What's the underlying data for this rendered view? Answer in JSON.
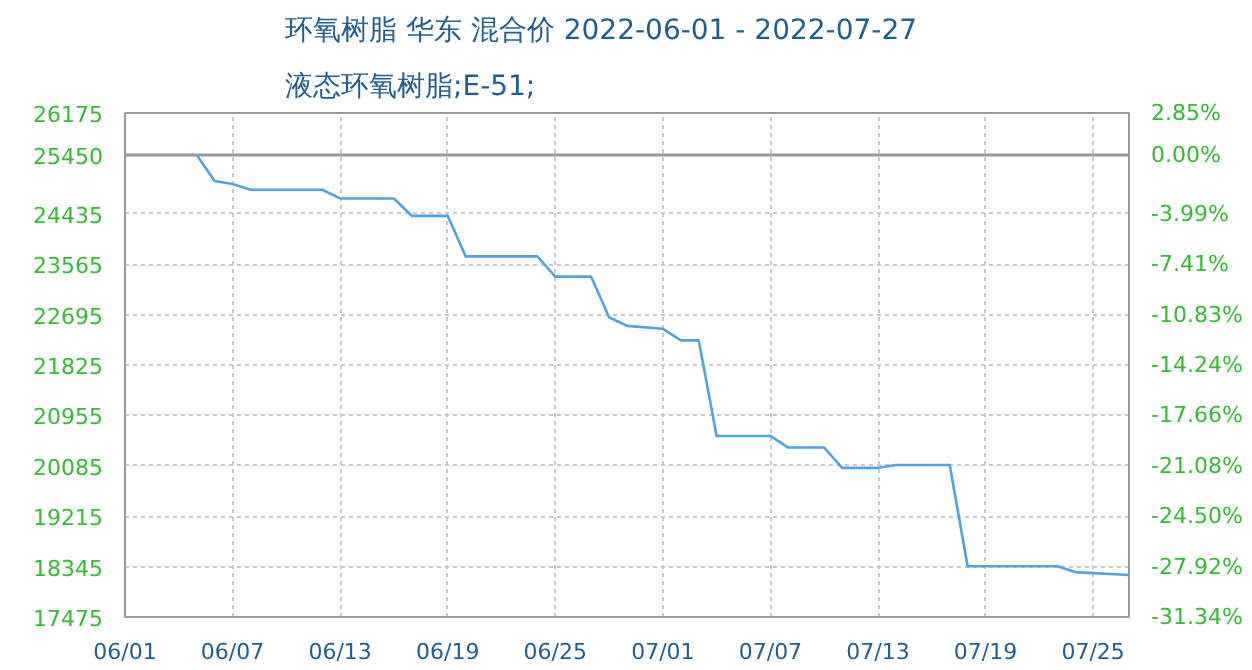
{
  "chart_data": {
    "type": "line",
    "title": "环氧树脂 华东 混合价 2022-06-01 - 2022-07-27",
    "subtitle": "液态环氧树脂;E-51;",
    "x": [
      "2022-06-01",
      "2022-06-05",
      "2022-06-06",
      "2022-06-07",
      "2022-06-08",
      "2022-06-12",
      "2022-06-13",
      "2022-06-16",
      "2022-06-17",
      "2022-06-19",
      "2022-06-20",
      "2022-06-24",
      "2022-06-25",
      "2022-06-27",
      "2022-06-28",
      "2022-06-29",
      "2022-07-01",
      "2022-07-02",
      "2022-07-03",
      "2022-07-04",
      "2022-07-07",
      "2022-07-08",
      "2022-07-10",
      "2022-07-11",
      "2022-07-13",
      "2022-07-14",
      "2022-07-17",
      "2022-07-18",
      "2022-07-23",
      "2022-07-24",
      "2022-07-27"
    ],
    "series": [
      {
        "color": "#4fa3e0",
        "values": [
          25450,
          25450,
          25000,
          24950,
          24850,
          24850,
          24700,
          24700,
          24400,
          24400,
          23700,
          23700,
          23350,
          23350,
          22650,
          22500,
          22450,
          22250,
          22250,
          20600,
          20600,
          20400,
          20400,
          20050,
          20050,
          20100,
          20100,
          18350,
          18350,
          18250,
          18200
        ]
      }
    ],
    "xlim": [
      "2022-06-01",
      "2022-07-27"
    ],
    "xticks": [
      {
        "value": "2022-06-01",
        "label": "06/01"
      },
      {
        "value": "2022-06-07",
        "label": "06/07"
      },
      {
        "value": "2022-06-13",
        "label": "06/13"
      },
      {
        "value": "2022-06-19",
        "label": "06/19"
      },
      {
        "value": "2022-06-25",
        "label": "06/25"
      },
      {
        "value": "2022-07-01",
        "label": "07/01"
      },
      {
        "value": "2022-07-07",
        "label": "07/07"
      },
      {
        "value": "2022-07-13",
        "label": "07/13"
      },
      {
        "value": "2022-07-19",
        "label": "07/19"
      },
      {
        "value": "2022-07-25",
        "label": "07/25"
      }
    ],
    "ylim": [
      17475,
      26175
    ],
    "yticks": [
      17475,
      18345,
      19215,
      20085,
      20955,
      21825,
      22695,
      23565,
      24435,
      25450,
      26175
    ],
    "y2lim": [
      -31.34,
      2.85
    ],
    "y2ticks": [
      {
        "value": -31.34,
        "label": "-31.34%"
      },
      {
        "value": -27.92,
        "label": "-27.92%"
      },
      {
        "value": -24.5,
        "label": "-24.50%"
      },
      {
        "value": -21.08,
        "label": "-21.08%"
      },
      {
        "value": -17.66,
        "label": "-17.66%"
      },
      {
        "value": -14.24,
        "label": "-14.24%"
      },
      {
        "value": -10.83,
        "label": "-10.83%"
      },
      {
        "value": -7.41,
        "label": "-7.41%"
      },
      {
        "value": -3.99,
        "label": "-3.99%"
      },
      {
        "value": 0,
        "label": "0.00%"
      },
      {
        "value": 2.85,
        "label": "2.85%"
      }
    ],
    "ref_lines": [
      {
        "axis": "y",
        "value": 25450,
        "color": "#999999"
      }
    ],
    "grid": true,
    "marker": "none",
    "line_style": "solid"
  }
}
